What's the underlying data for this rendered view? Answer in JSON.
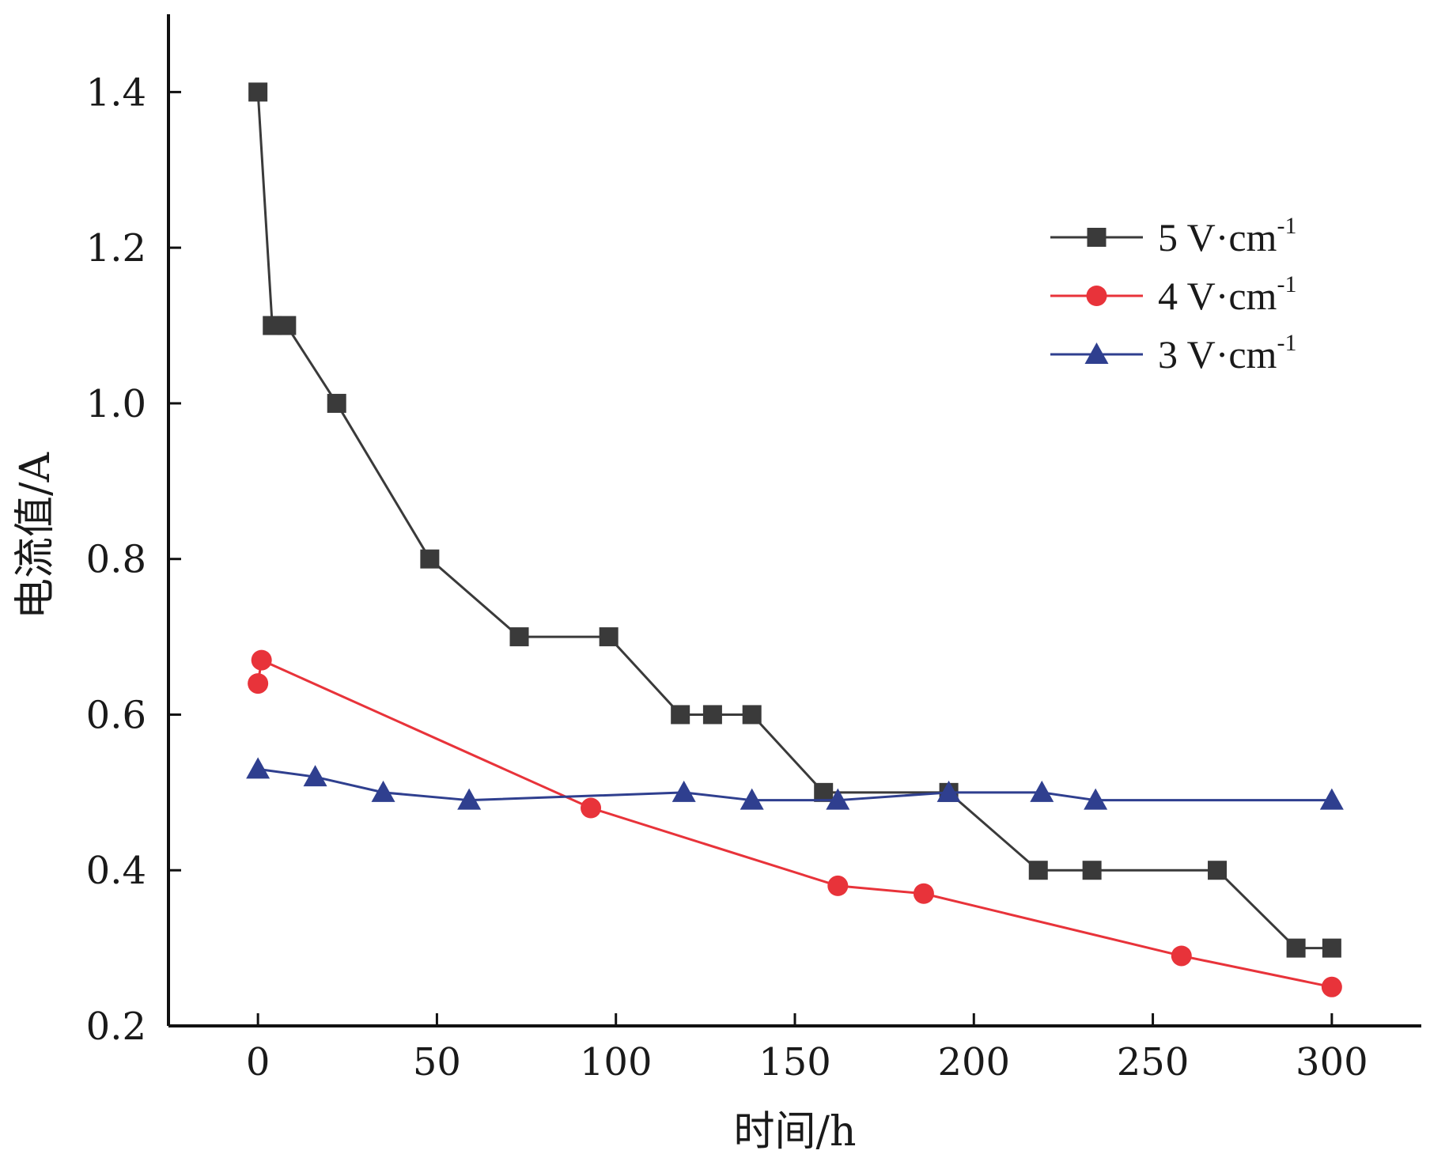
{
  "chart_data": {
    "type": "line",
    "xlabel": "时间/h",
    "ylabel": "电流值/A",
    "xlim": [
      -25,
      325
    ],
    "ylim": [
      0.2,
      1.5
    ],
    "xticks": [
      0,
      50,
      100,
      150,
      200,
      250,
      300
    ],
    "xtick_labels": [
      "0",
      "50",
      "100",
      "150",
      "200",
      "250",
      "300"
    ],
    "yticks": [
      0.2,
      0.4,
      0.6,
      0.8,
      1.0,
      1.2,
      1.4
    ],
    "ytick_labels": [
      "0.2",
      "0.4",
      "0.6",
      "0.8",
      "1.0",
      "1.2",
      "1.4"
    ],
    "grid": false,
    "legend_position": "top-right",
    "series": [
      {
        "name": "5 V·cm",
        "name_sup": "-1",
        "color": "#3a3a3a",
        "marker": "square",
        "x": [
          0,
          4,
          8,
          22,
          48,
          73,
          98,
          118,
          127,
          138,
          158,
          193,
          218,
          233,
          268,
          290,
          300
        ],
        "y": [
          1.4,
          1.1,
          1.1,
          1.0,
          0.8,
          0.7,
          0.7,
          0.6,
          0.6,
          0.6,
          0.5,
          0.5,
          0.4,
          0.4,
          0.4,
          0.3,
          0.3
        ]
      },
      {
        "name": "4 V·cm",
        "name_sup": "-1",
        "color": "#e8333a",
        "marker": "circle",
        "x": [
          0,
          1,
          93,
          162,
          186,
          258,
          300
        ],
        "y": [
          0.64,
          0.67,
          0.48,
          0.38,
          0.37,
          0.29,
          0.25
        ]
      },
      {
        "name": "3 V·cm",
        "name_sup": "-1",
        "color": "#2f3f8f",
        "marker": "triangle",
        "x": [
          0,
          16,
          35,
          59,
          119,
          138,
          162,
          193,
          219,
          234,
          300
        ],
        "y": [
          0.53,
          0.52,
          0.5,
          0.49,
          0.5,
          0.49,
          0.49,
          0.5,
          0.5,
          0.49,
          0.49
        ]
      }
    ]
  }
}
